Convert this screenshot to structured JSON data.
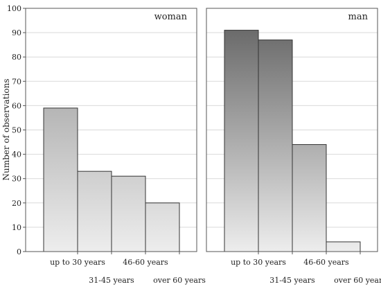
{
  "chart_data": {
    "type": "bar",
    "ylabel": "Number of observations",
    "ylim": [
      0,
      100
    ],
    "yticks": [
      0,
      10,
      20,
      30,
      40,
      50,
      60,
      70,
      80,
      90,
      100
    ],
    "grid": true,
    "categories": [
      "up to 30 years",
      "31-45 years",
      "46-60 years",
      "over 60 years"
    ],
    "panels": [
      {
        "title": "woman",
        "values": [
          59,
          33,
          31,
          20
        ],
        "bar_gradient": [
          "#8f8f8f",
          "#ededed"
        ]
      },
      {
        "title": "man",
        "values": [
          91,
          87,
          44,
          4
        ],
        "bar_gradient": [
          "#5e5e5e",
          "#ededed"
        ]
      }
    ]
  }
}
